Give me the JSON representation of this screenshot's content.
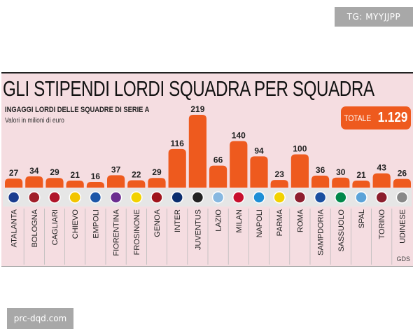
{
  "watermarks": {
    "top": "TG: MYYJJPP",
    "bottom": "prc-dqd.com"
  },
  "colors": {
    "bar": "#ee5a1e",
    "background": "#f5dde1",
    "logo_strip": "#e6e6e6"
  },
  "chart_data": {
    "type": "bar",
    "title": "GLI STIPENDI LORDI SQUADRA PER SQUADRA",
    "subtitle": "INGAGGI LORDI DELLE SQUADRE DI SERIE A",
    "unit_note": "Valori in milioni di euro",
    "total_label": "TOTALE",
    "total_value": "1.129",
    "source": "GDS",
    "categories": [
      "ATALANTA",
      "BOLOGNA",
      "CAGLIARI",
      "CHIEVO",
      "EMPOLI",
      "FIORENTINA",
      "FROSINONE",
      "GENOA",
      "INTER",
      "JUVENTUS",
      "LAZIO",
      "MILAN",
      "NAPOLI",
      "PARMA",
      "ROMA",
      "SAMPDORIA",
      "SASSUOLO",
      "SPAL",
      "TORINO",
      "UDINESE"
    ],
    "values": [
      27,
      34,
      29,
      21,
      16,
      37,
      22,
      29,
      116,
      219,
      66,
      140,
      94,
      23,
      100,
      36,
      30,
      21,
      43,
      26
    ],
    "logo_colors": [
      "#1a3d8f",
      "#a0202a",
      "#b0152a",
      "#f2c500",
      "#1c56a8",
      "#6b2d90",
      "#f2d200",
      "#a0141c",
      "#0a2d6e",
      "#222222",
      "#87b8e0",
      "#c8102e",
      "#1e8fd6",
      "#f2d200",
      "#8e1f2f",
      "#1a4fa0",
      "#00884a",
      "#5ba3d8",
      "#8b1e2d",
      "#888888"
    ],
    "data_labels": true,
    "grid": false
  }
}
